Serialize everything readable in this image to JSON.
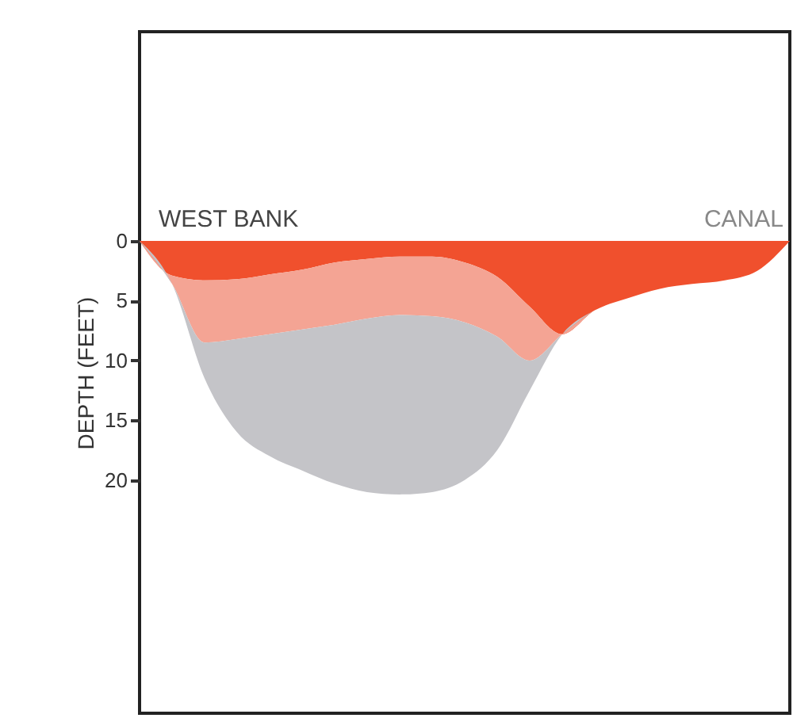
{
  "chart_data": {
    "type": "area",
    "stacked": true,
    "ylabel": "DEPTH (FEET)",
    "categories": [
      null,
      null,
      null,
      null,
      null,
      null,
      null,
      null,
      null,
      null,
      null,
      null,
      null,
      null,
      null,
      null,
      null,
      null,
      null,
      null,
      null
    ],
    "series": [
      {
        "color": "#f0502d",
        "values": [
          0,
          2.9,
          3.3,
          3.2,
          2.8,
          2.4,
          1.8,
          1.5,
          1.3,
          1.3,
          1.8,
          3,
          5.5,
          7.8,
          5.8,
          4.8,
          4,
          3.6,
          3.3,
          2.5,
          0
        ]
      },
      {
        "color": "#f4a494",
        "values": [
          0,
          0.7,
          5.2,
          5,
          5,
          5,
          5.2,
          5,
          4.9,
          5,
          5,
          5,
          4.5,
          0,
          0,
          0,
          0,
          0,
          0,
          0,
          0
        ]
      },
      {
        "color": "#c4c4c8",
        "values": [
          0,
          0,
          3,
          7.8,
          10.2,
          11.8,
          13.3,
          14.5,
          15,
          14.7,
          13.2,
          9.5,
          2.5,
          0,
          0,
          0,
          0,
          0,
          0,
          0,
          0
        ]
      }
    ],
    "ylim": [
      39.5,
      -17.5
    ],
    "yticks": [
      0,
      5,
      10,
      15,
      20
    ],
    "grid": false,
    "legend": false,
    "annotations": [
      "WEST BANK",
      "CANAL"
    ]
  }
}
